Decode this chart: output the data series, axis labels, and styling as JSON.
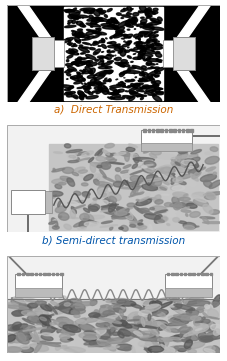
{
  "fig_width": 2.27,
  "fig_height": 3.61,
  "dpi": 100,
  "bg_color": "#ffffff",
  "panel_a": {
    "label": "a)  Direct Transmission",
    "label_color": "#cc6600",
    "label_fontsize": 7.5
  },
  "panel_b": {
    "label": "b) Semi-direct transmission",
    "label_color": "#0055aa",
    "label_fontsize": 7.5
  }
}
